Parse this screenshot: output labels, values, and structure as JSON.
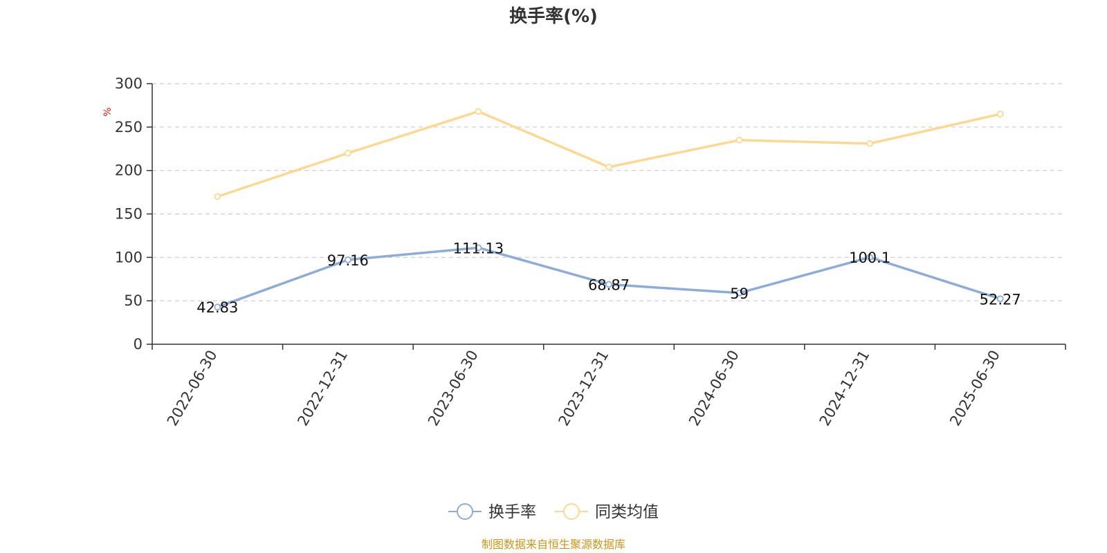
{
  "chart_data": {
    "type": "line",
    "title": "换手率(%)",
    "ylabel": "%",
    "xlabel": "",
    "categories": [
      "2022-06-30",
      "2022-12-31",
      "2023-06-30",
      "2023-12-31",
      "2024-06-30",
      "2024-12-31",
      "2025-06-30"
    ],
    "ylim": [
      0,
      300
    ],
    "yticks": [
      0,
      50,
      100,
      150,
      200,
      250,
      300
    ],
    "grid": true,
    "legend_position": "bottom-center",
    "series": [
      {
        "name": "换手率",
        "color": "#8eacd8",
        "values": [
          42.83,
          97.16,
          111.13,
          68.87,
          59,
          100.1,
          52.27
        ],
        "data_labels": [
          "42.83",
          "97.16",
          "111.13",
          "68.87",
          "59",
          "100.1",
          "52.27"
        ]
      },
      {
        "name": "同类均值",
        "color": "#fcd992",
        "values": [
          170,
          220,
          268,
          204,
          235,
          231,
          265
        ]
      }
    ]
  },
  "source": "制图数据来自恒生聚源数据库"
}
